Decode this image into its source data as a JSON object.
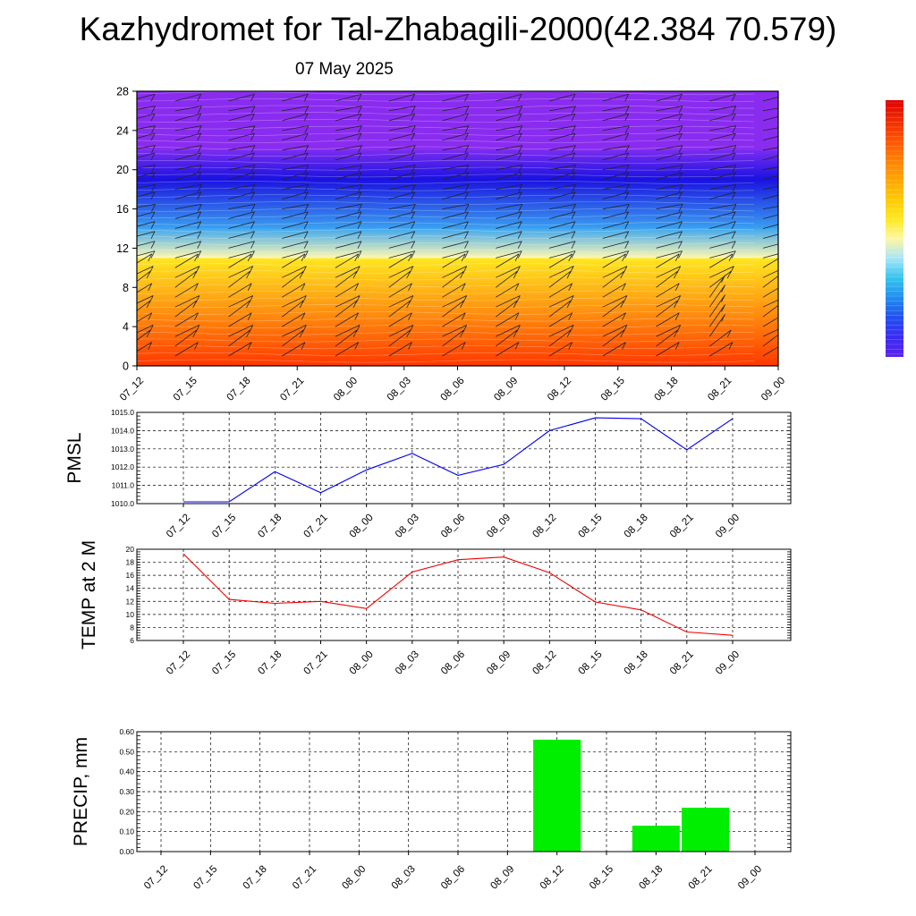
{
  "page": {
    "title": "Kazhydromet for Tal-Zhabagili-2000(42.384 70.579)",
    "date": "07 May 2025"
  },
  "colors": {
    "pmsl_line": "#0000ee",
    "temp_line": "#ee0000",
    "precip_bar": "#00ee00",
    "colorbar_top": "#e00000",
    "colorbar_bottom": "#5a22ee"
  },
  "chart_data": [
    {
      "id": "profile",
      "type": "heatmap",
      "title": "",
      "xlabel": "",
      "ylabel": "",
      "categories": [
        "07_12",
        "07_15",
        "07_18",
        "07_21",
        "08_00",
        "08_03",
        "08_06",
        "08_09",
        "08_12",
        "08_15",
        "08_18",
        "08_21",
        "09_00"
      ],
      "yticks": [
        "0",
        "4",
        "8",
        "12",
        "16",
        "20",
        "24",
        "28"
      ],
      "ylim": [
        0,
        28
      ],
      "colormap": [
        "#5a22ee",
        "#3a2cf2",
        "#2250f0",
        "#1f8ef0",
        "#33c4ee",
        "#a8e6f8",
        "#fff7a0",
        "#ffe81a",
        "#ffc800",
        "#ffa400",
        "#ff7e00",
        "#ff5200",
        "#f02a00",
        "#e00000"
      ],
      "bands_bottom_to_top": [
        {
          "from": 0,
          "to": 11,
          "color_range": [
            "#ff3800",
            "#ffe820"
          ]
        },
        {
          "from": 11,
          "to": 14,
          "color_range": [
            "#fff8b0",
            "#40a8f0"
          ]
        },
        {
          "from": 14,
          "to": 19,
          "color_range": [
            "#3aa0f0",
            "#1a12e0"
          ]
        },
        {
          "from": 19,
          "to": 22,
          "color_range": [
            "#1a12e0",
            "#7a2cf0"
          ]
        },
        {
          "from": 22,
          "to": 28,
          "color_range": [
            "#8a2cf0",
            "#8a2cf0"
          ]
        }
      ],
      "wind_barbs": "present",
      "colorbar": "right, unlabeled"
    },
    {
      "id": "pmsl",
      "type": "line",
      "title": "",
      "ylabel": "PMSL",
      "xlabel": "",
      "categories": [
        "07_12",
        "07_15",
        "07_18",
        "07_21",
        "08_00",
        "08_03",
        "08_06",
        "08_09",
        "08_12",
        "08_15",
        "08_18",
        "08_21",
        "09_00"
      ],
      "yticks": [
        "1010.0",
        "1011.0",
        "1012.0",
        "1013.0",
        "1014.0",
        "1015.0"
      ],
      "ylim": [
        1010.0,
        1015.0
      ],
      "grid": true,
      "series": [
        {
          "values": [
            1010.1,
            1010.1,
            1011.75,
            1010.6,
            1011.85,
            1012.75,
            1011.55,
            1012.15,
            1014.0,
            1014.7,
            1014.65,
            1012.95,
            1014.65
          ]
        }
      ]
    },
    {
      "id": "temp",
      "type": "line",
      "title": "",
      "ylabel": "TEMP at 2 M",
      "xlabel": "",
      "categories": [
        "07_12",
        "07_15",
        "07_18",
        "07_21",
        "08_00",
        "08_03",
        "08_06",
        "08_09",
        "08_12",
        "08_15",
        "08_18",
        "08_21",
        "09_00"
      ],
      "yticks": [
        "6",
        "8",
        "10",
        "12",
        "14",
        "16",
        "18",
        "20"
      ],
      "ylim": [
        6,
        20
      ],
      "grid": true,
      "series": [
        {
          "values": [
            19.3,
            12.3,
            11.7,
            12.0,
            10.9,
            16.5,
            18.4,
            18.8,
            16.4,
            11.9,
            10.7,
            7.3,
            6.8
          ]
        }
      ]
    },
    {
      "id": "precip",
      "type": "bar",
      "title": "",
      "ylabel": "PRECIP, mm",
      "xlabel": "",
      "categories": [
        "07_12",
        "07_15",
        "07_18",
        "07_21",
        "08_00",
        "08_03",
        "08_06",
        "08_09",
        "08_12",
        "08_15",
        "08_18",
        "08_21",
        "09_00"
      ],
      "yticks": [
        "0.00",
        "0.10",
        "0.20",
        "0.30",
        "0.40",
        "0.50",
        "0.60"
      ],
      "ylim": [
        0,
        0.6
      ],
      "grid": true,
      "series": [
        {
          "values": [
            0,
            0,
            0,
            0,
            0,
            0,
            0,
            0,
            0.56,
            0,
            0.13,
            0.22,
            0
          ]
        }
      ]
    }
  ]
}
